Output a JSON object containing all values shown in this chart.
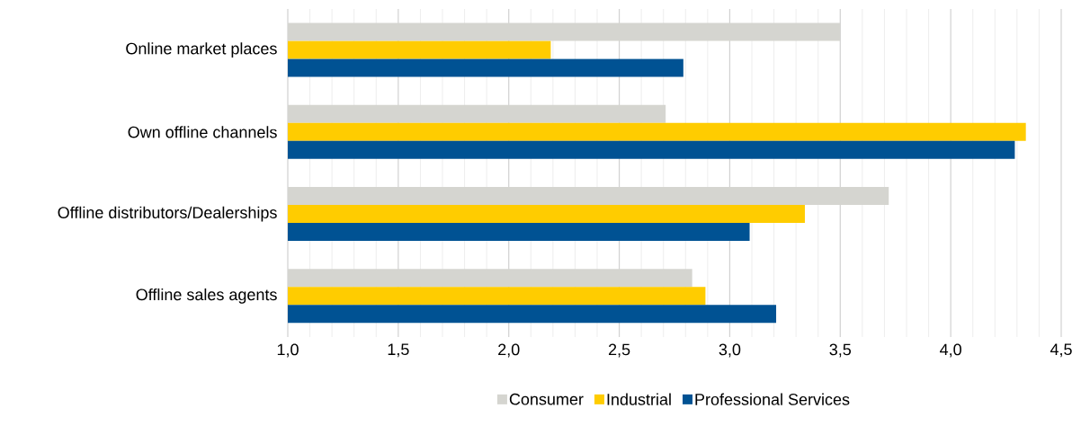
{
  "chart_data": {
    "type": "bar",
    "orientation": "horizontal",
    "categories": [
      "Online market places",
      "Own offline channels",
      "Offline distributors/Dealerships",
      "Offline sales agents"
    ],
    "series": [
      {
        "name": "Consumer",
        "color": "#d5d5d0",
        "values": [
          3.5,
          2.71,
          3.72,
          2.83
        ]
      },
      {
        "name": "Industrial",
        "color": "#ffcc00",
        "values": [
          2.19,
          4.34,
          3.34,
          2.89
        ]
      },
      {
        "name": "Professional Services",
        "color": "#005293",
        "values": [
          2.79,
          4.29,
          3.09,
          3.21
        ]
      }
    ],
    "xlim": [
      1.0,
      4.5
    ],
    "xticks": [
      {
        "value": 1.0,
        "label": "1,0"
      },
      {
        "value": 1.5,
        "label": "1,5"
      },
      {
        "value": 2.0,
        "label": "2,0"
      },
      {
        "value": 2.5,
        "label": "2,5"
      },
      {
        "value": 3.0,
        "label": "3,0"
      },
      {
        "value": 3.5,
        "label": "3,5"
      },
      {
        "value": 4.0,
        "label": "4,0"
      },
      {
        "value": 4.5,
        "label": "4,5"
      }
    ],
    "grid": "x",
    "legend": "bottom"
  }
}
